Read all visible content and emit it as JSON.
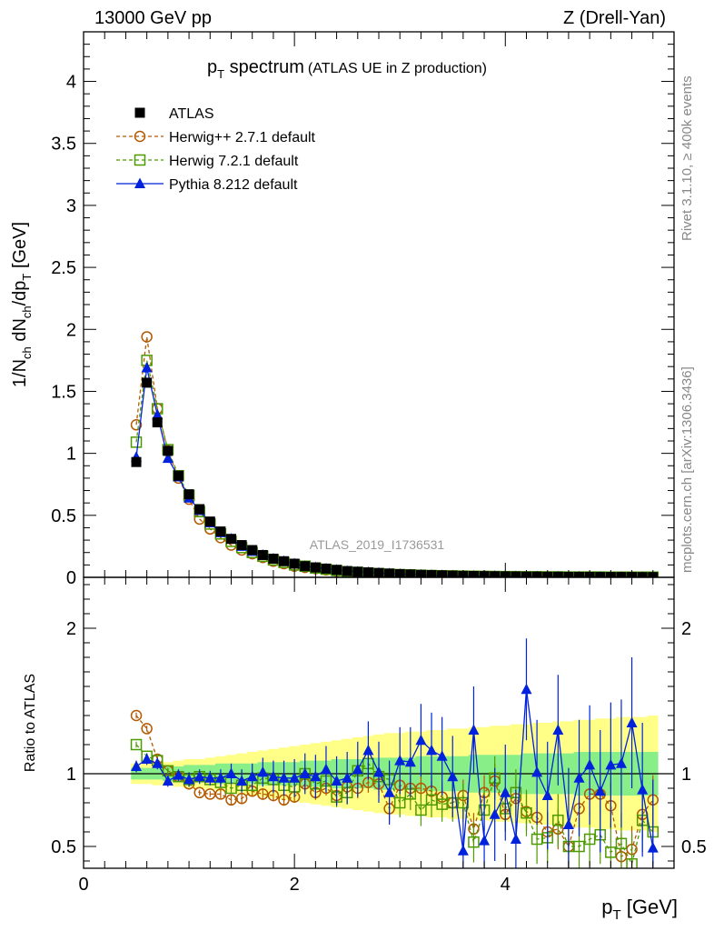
{
  "header": {
    "left": "13000 GeV pp",
    "right": "Z (Drell-Yan)"
  },
  "side_text": {
    "rivet": "Rivet 3.1.10, ≥ 400k events",
    "url": "mcplots.cern.ch [arXiv:1306.3436]"
  },
  "main_title": {
    "main": "p",
    "sub": "T",
    "rest": " spectrum",
    "small": "(ATLAS UE in Z production)"
  },
  "analysis_id": "ATLAS_2019_I1736531",
  "ylabel_main": "1/N_ch dN_ch/dp_T [GeV]",
  "ylabel_ratio": "Ratio to ATLAS",
  "xlabel": "p_T [GeV]",
  "legend": [
    {
      "label": "ATLAS",
      "color": "#000000",
      "marker": "filled-square"
    },
    {
      "label": "Herwig++ 2.7.1 default",
      "color": "#b35900",
      "marker": "open-circle"
    },
    {
      "label": "Herwig 7.2.1 default",
      "color": "#4d9900",
      "marker": "open-square"
    },
    {
      "label": "Pythia 8.212 default",
      "color": "#0022dd",
      "marker": "filled-triangle"
    }
  ],
  "colors": {
    "atlas": "#000000",
    "herwigpp": "#b35900",
    "herwig7": "#4d9900",
    "pythia": "#0022dd",
    "band_outer": "#ffff88",
    "band_inner": "#88ee88"
  },
  "chart_data": [
    {
      "type": "line",
      "title": "pT spectrum (ATLAS UE in Z production)",
      "xlabel": "p_T [GeV]",
      "ylabel": "1/N_ch dN_ch/dp_T [GeV]",
      "xlim": [
        0,
        5.6
      ],
      "ylim": [
        0,
        4.4
      ],
      "yticks": [
        "0",
        "0.5",
        "1",
        "1.5",
        "2",
        "2.5",
        "3",
        "3.5",
        "4"
      ],
      "x": [
        0.5,
        0.6,
        0.7,
        0.8,
        0.9,
        1.0,
        1.1,
        1.2,
        1.3,
        1.4,
        1.5,
        1.6,
        1.7,
        1.8,
        1.9,
        2.0,
        2.1,
        2.2,
        2.3,
        2.4,
        2.5,
        2.6,
        2.7,
        2.8,
        2.9,
        3.0,
        3.1,
        3.2,
        3.3,
        3.4,
        3.5,
        3.6,
        3.7,
        3.8,
        3.9,
        4.0,
        4.1,
        4.2,
        4.3,
        4.4,
        4.5,
        4.6,
        4.7,
        4.8,
        4.9,
        5.0,
        5.1,
        5.2,
        5.3,
        5.4
      ],
      "series": [
        {
          "name": "ATLAS",
          "values": [
            0.93,
            1.57,
            1.25,
            1.02,
            0.82,
            0.67,
            0.55,
            0.45,
            0.37,
            0.31,
            0.26,
            0.22,
            0.18,
            0.15,
            0.13,
            0.11,
            0.09,
            0.08,
            0.07,
            0.06,
            0.05,
            0.045,
            0.04,
            0.035,
            0.03,
            0.026,
            0.023,
            0.02,
            0.018,
            0.016,
            0.014,
            0.012,
            0.011,
            0.01,
            0.009,
            0.008,
            0.007,
            0.006,
            0.006,
            0.005,
            0.005,
            0.004,
            0.004,
            0.004,
            0.003,
            0.003,
            0.003,
            0.003,
            0.002,
            0.002
          ]
        },
        {
          "name": "Herwig++ 2.7.1 default",
          "values": [
            1.23,
            1.94,
            1.36,
            1.02,
            0.8,
            0.63,
            0.47,
            0.39,
            0.32,
            0.26,
            0.22,
            0.19,
            0.16,
            0.13,
            0.11,
            0.09,
            0.08,
            0.07,
            0.06,
            0.05,
            0.04,
            0.036,
            0.032,
            0.028,
            0.024,
            0.021,
            0.018,
            0.016,
            0.014,
            0.012,
            0.011,
            0.01,
            0.009,
            0.008,
            0.007,
            0.006,
            0.005,
            0.005,
            0.004,
            0.004,
            0.003,
            0.003,
            0.003,
            0.003,
            0.002,
            0.002,
            0.002,
            0.002,
            0.002,
            0.002
          ]
        },
        {
          "name": "Herwig 7.2.1 default",
          "values": [
            1.09,
            1.75,
            1.36,
            1.03,
            0.82,
            0.66,
            0.53,
            0.43,
            0.35,
            0.29,
            0.24,
            0.2,
            0.17,
            0.14,
            0.12,
            0.1,
            0.09,
            0.075,
            0.065,
            0.055,
            0.045,
            0.04,
            0.035,
            0.03,
            0.026,
            0.022,
            0.02,
            0.017,
            0.015,
            0.013,
            0.012,
            0.01,
            0.009,
            0.008,
            0.007,
            0.006,
            0.006,
            0.005,
            0.005,
            0.004,
            0.004,
            0.003,
            0.003,
            0.003,
            0.003,
            0.002,
            0.002,
            0.002,
            0.002,
            0.002
          ]
        },
        {
          "name": "Pythia 8.212 default",
          "values": [
            0.97,
            1.69,
            1.31,
            0.96,
            0.81,
            0.64,
            0.54,
            0.44,
            0.36,
            0.31,
            0.25,
            0.21,
            0.18,
            0.15,
            0.13,
            0.11,
            0.09,
            0.08,
            0.07,
            0.06,
            0.05,
            0.045,
            0.04,
            0.035,
            0.03,
            0.026,
            0.023,
            0.02,
            0.018,
            0.016,
            0.014,
            0.012,
            0.011,
            0.01,
            0.009,
            0.008,
            0.007,
            0.006,
            0.006,
            0.005,
            0.005,
            0.004,
            0.004,
            0.004,
            0.003,
            0.003,
            0.003,
            0.003,
            0.002,
            0.002
          ]
        }
      ]
    },
    {
      "type": "line",
      "ylabel": "Ratio to ATLAS",
      "xlabel": "p_T [GeV]",
      "xlim": [
        0,
        5.6
      ],
      "ylim": [
        0.35,
        2.35
      ],
      "xticks": [
        "0",
        "2",
        "4"
      ],
      "yticks": [
        "0.5",
        "1",
        "2"
      ],
      "x": [
        0.5,
        0.6,
        0.7,
        0.8,
        0.9,
        1.0,
        1.1,
        1.2,
        1.3,
        1.4,
        1.5,
        1.6,
        1.7,
        1.8,
        1.9,
        2.0,
        2.1,
        2.2,
        2.3,
        2.4,
        2.5,
        2.6,
        2.7,
        2.8,
        2.9,
        3.0,
        3.1,
        3.2,
        3.3,
        3.4,
        3.5,
        3.6,
        3.7,
        3.8,
        3.9,
        4.0,
        4.1,
        4.2,
        4.3,
        4.4,
        4.5,
        4.6,
        4.7,
        4.8,
        4.9,
        5.0,
        5.1,
        5.2,
        5.3,
        5.4
      ],
      "band_inner_halfwidth": [
        0.04,
        0.04,
        0.04,
        0.05,
        0.05,
        0.06,
        0.06,
        0.06,
        0.07,
        0.07,
        0.07,
        0.07,
        0.08,
        0.08,
        0.08,
        0.08,
        0.09,
        0.09,
        0.09,
        0.1,
        0.1,
        0.1,
        0.1,
        0.11,
        0.11,
        0.11,
        0.11,
        0.12,
        0.12,
        0.12,
        0.12,
        0.12,
        0.13,
        0.13,
        0.13,
        0.13,
        0.13,
        0.14,
        0.14,
        0.14,
        0.14,
        0.14,
        0.15,
        0.15,
        0.15,
        0.15,
        0.15,
        0.15,
        0.15,
        0.15
      ],
      "band_outer_halfwidth": [
        0.07,
        0.07,
        0.08,
        0.08,
        0.09,
        0.1,
        0.1,
        0.11,
        0.12,
        0.13,
        0.14,
        0.15,
        0.16,
        0.17,
        0.18,
        0.19,
        0.2,
        0.21,
        0.22,
        0.23,
        0.24,
        0.25,
        0.26,
        0.27,
        0.28,
        0.28,
        0.29,
        0.29,
        0.3,
        0.3,
        0.31,
        0.31,
        0.32,
        0.32,
        0.33,
        0.33,
        0.34,
        0.34,
        0.35,
        0.35,
        0.36,
        0.36,
        0.37,
        0.37,
        0.38,
        0.38,
        0.39,
        0.39,
        0.39,
        0.4
      ],
      "series": [
        {
          "name": "Herwig++ 2.7.1 default",
          "values": [
            1.4,
            1.31,
            1.1,
            1.02,
            0.98,
            0.93,
            0.87,
            0.86,
            0.86,
            0.82,
            0.83,
            0.88,
            0.86,
            0.85,
            0.82,
            0.84,
            0.93,
            0.87,
            0.9,
            0.85,
            0.91,
            0.9,
            0.94,
            0.93,
            0.76,
            0.92,
            0.9,
            0.9,
            0.88,
            0.84,
            0.8,
            0.85,
            0.62,
            0.87,
            0.95,
            0.72,
            0.83,
            0.74,
            0.7,
            0.6,
            0.62,
            0.5,
            0.76,
            0.86,
            0.86,
            0.78,
            0.43,
            0.48,
            0.72,
            0.82
          ],
          "errors": [
            0.02,
            0.02,
            0.02,
            0.02,
            0.02,
            0.02,
            0.02,
            0.02,
            0.03,
            0.03,
            0.03,
            0.03,
            0.04,
            0.04,
            0.04,
            0.04,
            0.05,
            0.05,
            0.05,
            0.06,
            0.06,
            0.07,
            0.07,
            0.08,
            0.08,
            0.08,
            0.09,
            0.09,
            0.1,
            0.1,
            0.1,
            0.11,
            0.11,
            0.12,
            0.12,
            0.12,
            0.13,
            0.13,
            0.13,
            0.14,
            0.14,
            0.14,
            0.15,
            0.15,
            0.15,
            0.16,
            0.16,
            0.16,
            0.17,
            0.17
          ]
        },
        {
          "name": "Herwig 7.2.1 default",
          "values": [
            1.2,
            1.12,
            1.09,
            1.02,
            0.98,
            0.96,
            0.98,
            0.96,
            0.94,
            0.9,
            0.92,
            0.92,
            0.97,
            0.96,
            0.92,
            0.91,
            1.0,
            0.93,
            0.95,
            0.84,
            0.87,
            1.02,
            1.07,
            0.98,
            0.96,
            0.8,
            0.86,
            0.75,
            0.82,
            0.79,
            0.8,
            0.8,
            0.53,
            0.75,
            0.97,
            0.76,
            0.87,
            0.73,
            0.55,
            0.56,
            0.68,
            0.5,
            0.5,
            0.55,
            0.58,
            0.46,
            0.52,
            0.38,
            0.68,
            0.6
          ],
          "errors": [
            0.02,
            0.02,
            0.02,
            0.02,
            0.02,
            0.02,
            0.02,
            0.02,
            0.03,
            0.03,
            0.03,
            0.04,
            0.04,
            0.04,
            0.05,
            0.05,
            0.06,
            0.06,
            0.07,
            0.07,
            0.08,
            0.08,
            0.09,
            0.09,
            0.1,
            0.1,
            0.11,
            0.11,
            0.12,
            0.12,
            0.13,
            0.13,
            0.14,
            0.14,
            0.15,
            0.15,
            0.16,
            0.16,
            0.17,
            0.17,
            0.18,
            0.18,
            0.19,
            0.19,
            0.2,
            0.2,
            0.21,
            0.21,
            0.22,
            0.22
          ]
        },
        {
          "name": "Pythia 8.212 default",
          "values": [
            1.05,
            1.1,
            1.07,
            0.95,
            0.99,
            0.96,
            0.98,
            0.97,
            0.97,
            1.0,
            0.95,
            0.98,
            1.01,
            0.98,
            0.97,
            0.97,
            1.0,
            0.98,
            1.03,
            0.95,
            0.97,
            1.03,
            1.16,
            1.01,
            0.87,
            1.09,
            1.08,
            1.23,
            1.16,
            1.12,
            0.98,
            0.47,
            1.3,
            0.54,
            0.72,
            0.87,
            0.55,
            1.58,
            1.01,
            0.85,
            1.3,
            0.65,
            0.97,
            1.06,
            0.88,
            1.06,
            1.07,
            1.35,
            0.89,
            0.49
          ],
          "errors": [
            0.04,
            0.04,
            0.04,
            0.04,
            0.04,
            0.05,
            0.05,
            0.05,
            0.06,
            0.07,
            0.08,
            0.09,
            0.1,
            0.11,
            0.12,
            0.13,
            0.14,
            0.15,
            0.16,
            0.17,
            0.18,
            0.19,
            0.2,
            0.21,
            0.22,
            0.23,
            0.24,
            0.25,
            0.26,
            0.27,
            0.28,
            0.29,
            0.3,
            0.31,
            0.32,
            0.33,
            0.34,
            0.35,
            0.36,
            0.37,
            0.38,
            0.39,
            0.4,
            0.41,
            0.42,
            0.43,
            0.44,
            0.45,
            0.46,
            0.47
          ]
        }
      ]
    }
  ]
}
